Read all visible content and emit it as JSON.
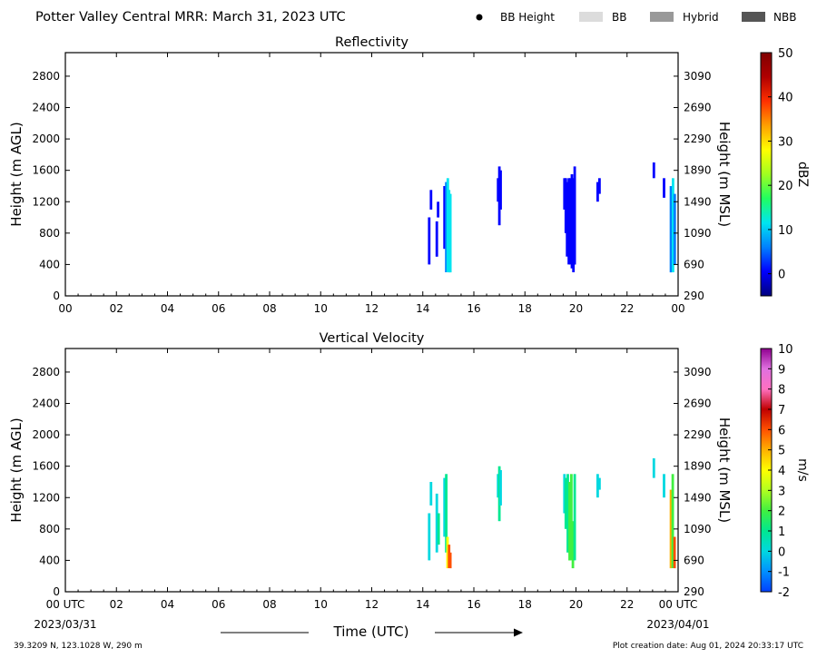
{
  "header": {
    "title": "Potter Valley Central MRR:  March 31, 2023 UTC",
    "legend": {
      "bb_height": "BB Height",
      "bb": "BB",
      "hybrid": "Hybrid",
      "nbb": "NBB",
      "colors": {
        "bb": "#dcdcdc",
        "hybrid": "#999999",
        "nbb": "#555555"
      }
    }
  },
  "footer": {
    "x_label": "Time (UTC)",
    "start_date": "2023/03/31",
    "end_date": "2023/04/01",
    "location": "39.3209 N, 123.1028 W, 290 m",
    "creation": "Plot creation date: Aug 01, 2024 20:33:17 UTC"
  },
  "chart_data": [
    {
      "type": "heatmap",
      "title": "Reflectivity",
      "ylabel_left": "Height (m AGL)",
      "ylabel_right": "Height (m MSL)",
      "xlim": [
        0,
        24
      ],
      "ylim": [
        0,
        3100
      ],
      "x_ticks": [
        "00",
        "02",
        "04",
        "06",
        "08",
        "10",
        "12",
        "14",
        "16",
        "18",
        "20",
        "22",
        "00"
      ],
      "y_ticks_left": [
        0,
        400,
        800,
        1200,
        1600,
        2000,
        2400,
        2800
      ],
      "y_ticks_right": [
        290,
        690,
        1090,
        1490,
        1890,
        2290,
        2690,
        3090
      ],
      "colorbar": {
        "label": "dBZ",
        "min": -5,
        "max": 50,
        "ticks": [
          0,
          10,
          20,
          30,
          40,
          50
        ],
        "colors": [
          "#00007f",
          "#0000ff",
          "#0080ff",
          "#00e5f0",
          "#20ff60",
          "#a0ff20",
          "#ffff00",
          "#ffa000",
          "#ff3000",
          "#b00000",
          "#800000"
        ]
      },
      "segments": [
        {
          "t": 14.25,
          "h0": 400,
          "h1": 1000,
          "v": 0
        },
        {
          "t": 14.32,
          "h0": 1100,
          "h1": 1350,
          "v": 0
        },
        {
          "t": 14.55,
          "h0": 500,
          "h1": 950,
          "v": 1
        },
        {
          "t": 14.6,
          "h0": 1000,
          "h1": 1200,
          "v": 0
        },
        {
          "t": 14.85,
          "h0": 600,
          "h1": 1400,
          "v": 3
        },
        {
          "t": 14.92,
          "h0": 300,
          "h1": 1450,
          "v": 9
        },
        {
          "t": 14.98,
          "h0": 300,
          "h1": 1500,
          "v": 10
        },
        {
          "t": 15.03,
          "h0": 300,
          "h1": 1350,
          "v": 11
        },
        {
          "t": 15.08,
          "h0": 300,
          "h1": 1300,
          "v": 12
        },
        {
          "t": 16.95,
          "h0": 1200,
          "h1": 1500,
          "v": 1
        },
        {
          "t": 17.0,
          "h0": 900,
          "h1": 1650,
          "v": 2
        },
        {
          "t": 17.05,
          "h0": 1100,
          "h1": 1600,
          "v": 1
        },
        {
          "t": 19.55,
          "h0": 1100,
          "h1": 1500,
          "v": 0
        },
        {
          "t": 19.6,
          "h0": 800,
          "h1": 1500,
          "v": 1
        },
        {
          "t": 19.65,
          "h0": 500,
          "h1": 1450,
          "v": 1
        },
        {
          "t": 19.72,
          "h0": 400,
          "h1": 1500,
          "v": 2
        },
        {
          "t": 19.78,
          "h0": 400,
          "h1": 1500,
          "v": 2
        },
        {
          "t": 19.84,
          "h0": 350,
          "h1": 1550,
          "v": 3
        },
        {
          "t": 19.9,
          "h0": 300,
          "h1": 1500,
          "v": 2
        },
        {
          "t": 19.95,
          "h0": 400,
          "h1": 1650,
          "v": 1
        },
        {
          "t": 20.85,
          "h0": 1200,
          "h1": 1450,
          "v": 0
        },
        {
          "t": 20.92,
          "h0": 1300,
          "h1": 1500,
          "v": 1
        },
        {
          "t": 23.05,
          "h0": 1500,
          "h1": 1700,
          "v": 0
        },
        {
          "t": 23.45,
          "h0": 1250,
          "h1": 1500,
          "v": 0
        },
        {
          "t": 23.72,
          "h0": 300,
          "h1": 1400,
          "v": 5
        },
        {
          "t": 23.8,
          "h0": 300,
          "h1": 1500,
          "v": 10
        },
        {
          "t": 23.87,
          "h0": 400,
          "h1": 1300,
          "v": 8
        }
      ]
    },
    {
      "type": "heatmap",
      "title": "Vertical Velocity",
      "ylabel_left": "Height (m AGL)",
      "ylabel_right": "Height (m MSL)",
      "xlim": [
        0,
        24
      ],
      "ylim": [
        0,
        3100
      ],
      "x_ticks": [
        "00 UTC",
        "02",
        "04",
        "06",
        "08",
        "10",
        "12",
        "14",
        "16",
        "18",
        "20",
        "22",
        "00 UTC"
      ],
      "y_ticks_left": [
        0,
        400,
        800,
        1200,
        1600,
        2000,
        2400,
        2800
      ],
      "y_ticks_right": [
        290,
        690,
        1090,
        1490,
        1890,
        2290,
        2690,
        3090
      ],
      "colorbar": {
        "label": "m/s",
        "min": -2,
        "max": 10,
        "ticks": [
          -2,
          -1,
          0,
          1,
          2,
          3,
          4,
          5,
          6,
          7,
          8,
          9,
          10
        ],
        "colors": [
          "#0040ff",
          "#0090ff",
          "#00d8e0",
          "#00e890",
          "#40f040",
          "#b0ff20",
          "#ffff00",
          "#ffb000",
          "#ff5000",
          "#c00000",
          "#ff70c0",
          "#e070e0",
          "#900090"
        ]
      },
      "segments": [
        {
          "t": 14.25,
          "h0": 400,
          "h1": 1000,
          "v": 0.4
        },
        {
          "t": 14.32,
          "h0": 1100,
          "h1": 1400,
          "v": 0.5
        },
        {
          "t": 14.55,
          "h0": 500,
          "h1": 1250,
          "v": 0.6
        },
        {
          "t": 14.62,
          "h0": 600,
          "h1": 1000,
          "v": 1.0
        },
        {
          "t": 14.85,
          "h0": 700,
          "h1": 1450,
          "v": 0.3
        },
        {
          "t": 14.92,
          "h0": 500,
          "h1": 1500,
          "v": 1.5
        },
        {
          "t": 14.97,
          "h0": 300,
          "h1": 700,
          "v": 3.8
        },
        {
          "t": 15.03,
          "h0": 300,
          "h1": 600,
          "v": 5.8
        },
        {
          "t": 15.08,
          "h0": 300,
          "h1": 500,
          "v": 6.0
        },
        {
          "t": 16.95,
          "h0": 1200,
          "h1": 1500,
          "v": 0.5
        },
        {
          "t": 17.0,
          "h0": 900,
          "h1": 1600,
          "v": 1.2
        },
        {
          "t": 17.05,
          "h0": 1100,
          "h1": 1550,
          "v": 0.6
        },
        {
          "t": 19.55,
          "h0": 1000,
          "h1": 1500,
          "v": 0.5
        },
        {
          "t": 19.6,
          "h0": 800,
          "h1": 1450,
          "v": 1.0
        },
        {
          "t": 19.68,
          "h0": 500,
          "h1": 1500,
          "v": 1.5
        },
        {
          "t": 19.75,
          "h0": 400,
          "h1": 1400,
          "v": 2.0
        },
        {
          "t": 19.82,
          "h0": 400,
          "h1": 1500,
          "v": 2.5
        },
        {
          "t": 19.88,
          "h0": 300,
          "h1": 900,
          "v": 2.2
        },
        {
          "t": 19.95,
          "h0": 400,
          "h1": 1500,
          "v": 1.2
        },
        {
          "t": 20.85,
          "h0": 1200,
          "h1": 1500,
          "v": 0.3
        },
        {
          "t": 20.92,
          "h0": 1300,
          "h1": 1450,
          "v": 0.6
        },
        {
          "t": 23.05,
          "h0": 1450,
          "h1": 1700,
          "v": 0.3
        },
        {
          "t": 23.45,
          "h0": 1200,
          "h1": 1500,
          "v": 0.5
        },
        {
          "t": 23.72,
          "h0": 300,
          "h1": 1300,
          "v": 4.5
        },
        {
          "t": 23.79,
          "h0": 300,
          "h1": 1500,
          "v": 2.5
        },
        {
          "t": 23.86,
          "h0": 300,
          "h1": 700,
          "v": 6.0
        }
      ]
    }
  ]
}
